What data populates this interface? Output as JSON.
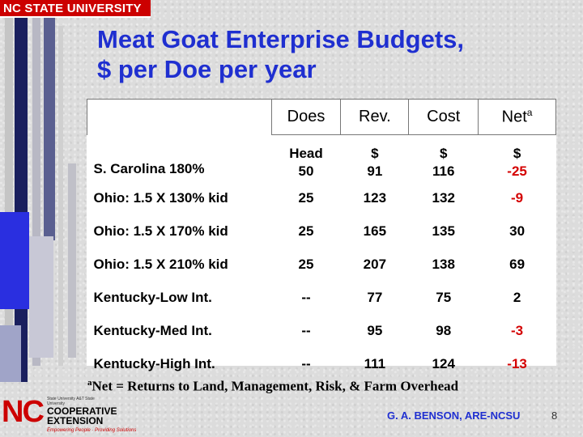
{
  "header": {
    "university": "NC STATE UNIVERSITY"
  },
  "title": {
    "line1": "Meat Goat Enterprise Budgets,",
    "line2": "$ per Doe per year"
  },
  "table": {
    "columns": [
      "Does",
      "Rev.",
      "Cost",
      "Net"
    ],
    "net_superscript": "a",
    "units": {
      "label": "S. Carolina 180%",
      "does": [
        "Head",
        "50"
      ],
      "rev": [
        "$",
        "91"
      ],
      "cost": [
        "$",
        "116"
      ],
      "net": [
        "$",
        "-25"
      ]
    },
    "rows": [
      {
        "label": "Ohio: 1.5 X 130% kid",
        "does": "25",
        "rev": "123",
        "cost": "132",
        "net": "-9"
      },
      {
        "label": "Ohio: 1.5 X 170% kid",
        "does": "25",
        "rev": "165",
        "cost": "135",
        "net": "30"
      },
      {
        "label": "Ohio: 1.5 X 210% kid",
        "does": "25",
        "rev": "207",
        "cost": "138",
        "net": "69"
      },
      {
        "label": "Kentucky-Low Int.",
        "does": "--",
        "rev": "77",
        "cost": "75",
        "net": "2"
      },
      {
        "label": "Kentucky-Med Int.",
        "does": "--",
        "rev": "95",
        "cost": "98",
        "net": "-3"
      },
      {
        "label": "Kentucky-High Int.",
        "does": "--",
        "rev": "111",
        "cost": "124",
        "net": "-13"
      }
    ]
  },
  "footnote": {
    "marker": "a",
    "text": "Net = Returns to Land, Management, Risk, & Farm Overhead"
  },
  "footer": {
    "author": "G. A. BENSON, ARE-NCSU",
    "page_number": "8",
    "extension_logo": {
      "nc": "NC",
      "small_text": "State University A&T State University",
      "line1": "COOPERATIVE",
      "line2": "EXTENSION",
      "tagline": "Empowering People · Providing Solutions"
    }
  },
  "colors": {
    "title": "#1f2fd0",
    "negative": "#d40000",
    "brand_red": "#cc0000",
    "stripe_blue": "#2a2fe0",
    "stripe_navy": "#1a1f5e"
  }
}
